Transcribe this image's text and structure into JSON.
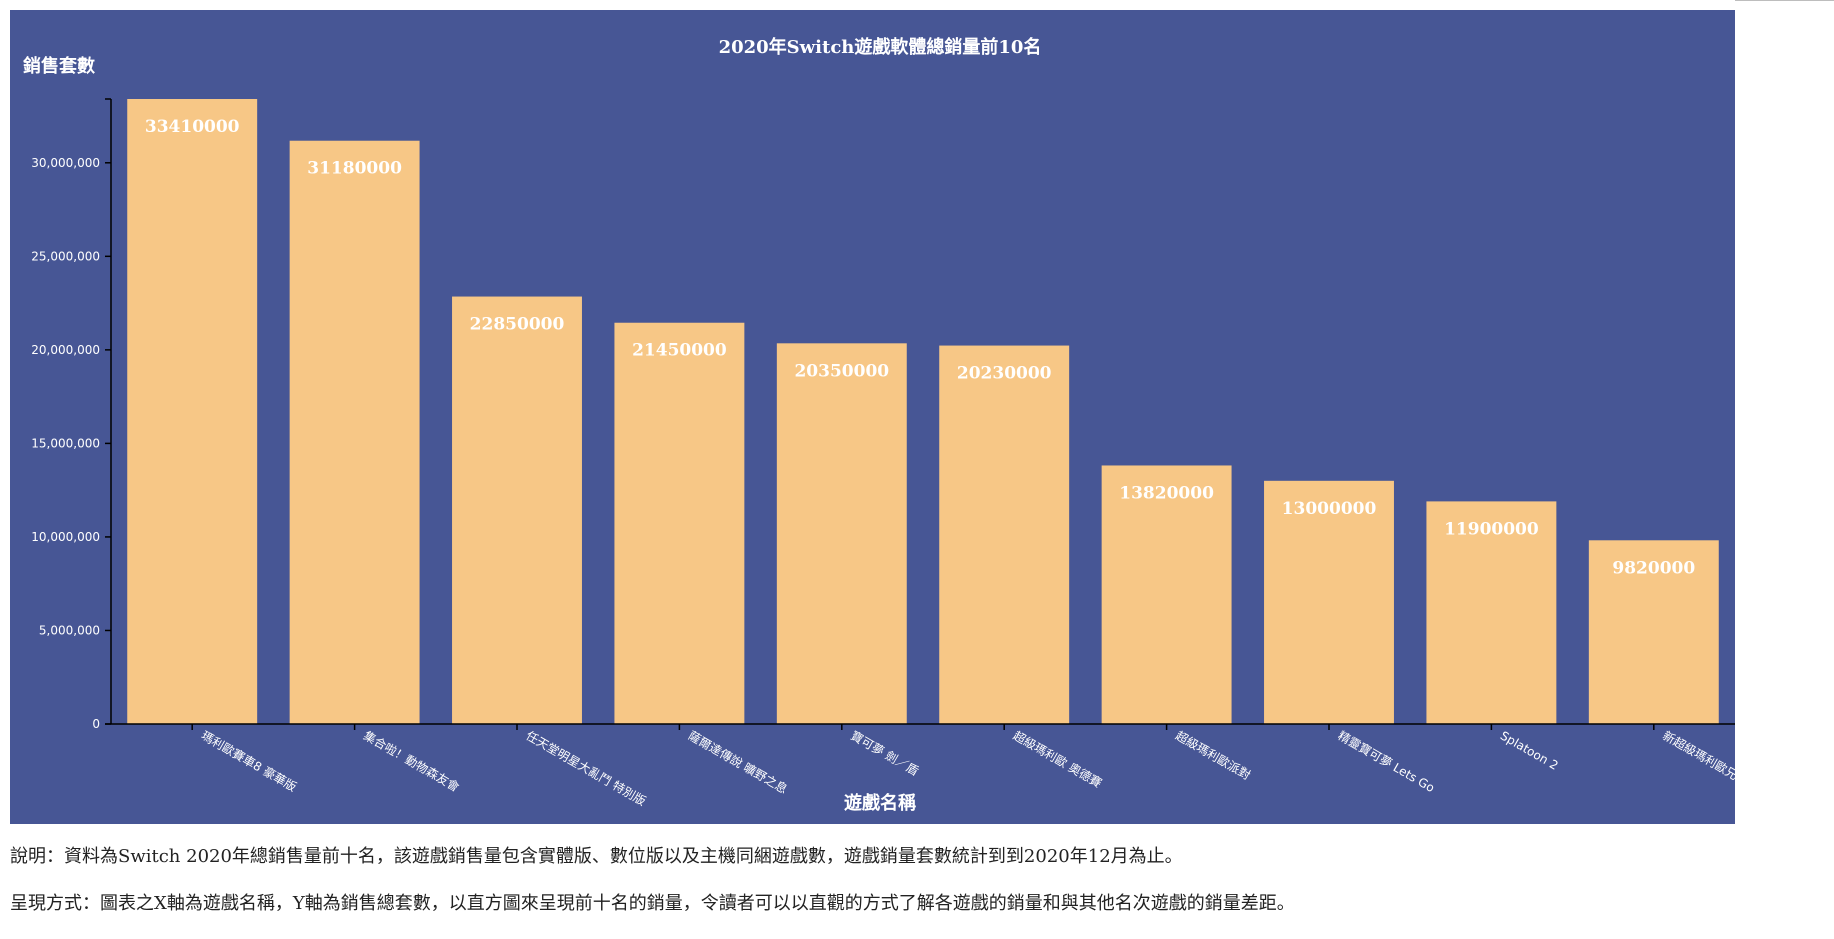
{
  "chart_data": {
    "type": "bar",
    "title": "2020年Switch遊戲軟體總銷量前10名",
    "ylabel": "銷售套數",
    "xlabel": "遊戲名稱",
    "categories": [
      "瑪利歐賽車8 豪華版",
      "集合啦！動物森友會",
      "任天堂明星大亂鬥 特別版",
      "薩爾達傳說 曠野之息",
      "寶可夢 劍／盾",
      "超級瑪利歐 奧德賽",
      "超級瑪利歐派對",
      "精靈寶可夢 Lets Go",
      "Splatoon 2",
      "新超級瑪利歐兄弟"
    ],
    "values": [
      33410000,
      31180000,
      22850000,
      21450000,
      20350000,
      20230000,
      13820000,
      13000000,
      11900000,
      9820000
    ],
    "ylim": [
      0,
      33410000
    ],
    "yticks": [
      0,
      5000000,
      10000000,
      15000000,
      20000000,
      25000000,
      30000000
    ],
    "ytick_labels": [
      "0",
      "5,000,000",
      "10,000,000",
      "15,000,000",
      "20,000,000",
      "25,000,000",
      "30,000,000"
    ],
    "grid": false,
    "colors": {
      "background": "#475695",
      "bar": "#f7c786",
      "text": "#ffffff",
      "axis": "#000000"
    }
  },
  "notes": {
    "description": "說明：資料為Switch 2020年總銷售量前十名，該遊戲銷售量包含實體版、數位版以及主機同綑遊戲數，遊戲銷量套數統計到到2020年12月為止。",
    "presentation": "呈現方式：圖表之X軸為遊戲名稱，Y軸為銷售總套數，以直方圖來呈現前十名的銷量，令讀者可以以直觀的方式了解各遊戲的銷量和與其他名次遊戲的銷量差距。"
  }
}
